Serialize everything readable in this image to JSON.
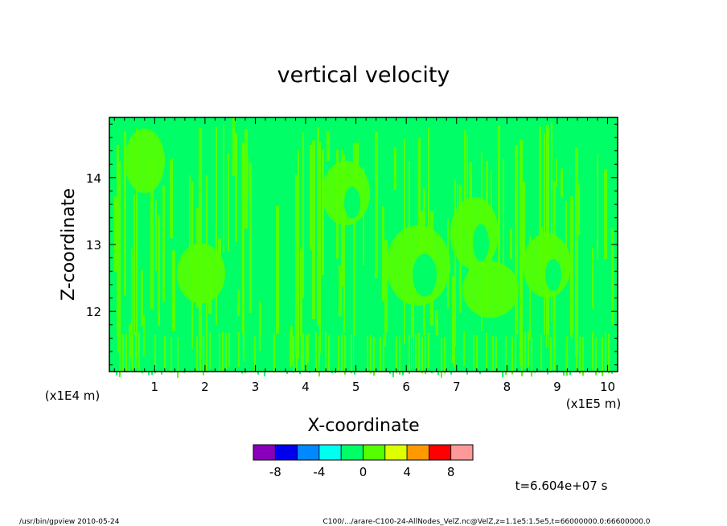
{
  "chart_data": {
    "type": "heatmap",
    "title": "vertical velocity",
    "xlabel": "X-coordinate",
    "ylabel": "Z-coordinate",
    "x_unit": "(x1E5 m)",
    "y_unit": "(x1E4 m)",
    "xlim": [
      0.1,
      10.2
    ],
    "ylim": [
      11.1,
      14.9
    ],
    "x_ticks": [
      "1",
      "2",
      "3",
      "4",
      "5",
      "6",
      "7",
      "8",
      "9",
      "10"
    ],
    "y_ticks": [
      "12",
      "13",
      "14"
    ],
    "colorbar": {
      "colors": [
        "#8800bb",
        "#0000ee",
        "#0088ff",
        "#00ffee",
        "#00ff66",
        "#55ff00",
        "#ddff00",
        "#ff9900",
        "#ff0000",
        "#ff9999"
      ],
      "tick_labels": [
        "-8",
        "-4",
        "0",
        "4",
        "8"
      ]
    },
    "dominant_values": "field mostly between -2 and 2 (green shades)",
    "grid": false
  },
  "time_label": "t=6.604e+07 s",
  "footer": {
    "left": "/usr/bin/gpview   2010-05-24",
    "right": "C100/.../arare-C100-24-AllNodes_VelZ.nc@VelZ,z=1.1e5:1.5e5,t=66000000.0:66600000.0"
  }
}
